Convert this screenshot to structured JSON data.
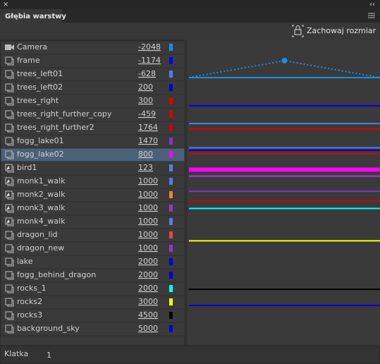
{
  "header": {
    "close": "×",
    "collapse": "‹‹",
    "tab": "Głębia warstwy",
    "button": "Zachowaj rozmiar"
  },
  "layers": [
    {
      "name": "Camera",
      "depth": -2048,
      "color": "#1b8fe5",
      "icon": "camera"
    },
    {
      "name": "frame",
      "depth": -1174,
      "color": "#0000ee",
      "icon": "layer"
    },
    {
      "name": "trees_left01",
      "depth": -628,
      "color": "#4f7fe8",
      "icon": "layer"
    },
    {
      "name": "trees_left02",
      "depth": 200,
      "color": "#0000dd",
      "icon": "layer"
    },
    {
      "name": "trees_right",
      "depth": 300,
      "color": "#dd0000",
      "icon": "layer"
    },
    {
      "name": "trees_right_further_copy",
      "depth": -459,
      "color": "#dd0000",
      "icon": "layer"
    },
    {
      "name": "trees_right_further2",
      "depth": 1764,
      "color": "#cc0000",
      "icon": "layer"
    },
    {
      "name": "fogg_lake01",
      "depth": 1470,
      "color": "#8833cc",
      "icon": "layer"
    },
    {
      "name": "fogg_lake02",
      "depth": 800,
      "color": "#ff00ff",
      "icon": "layer"
    },
    {
      "name": "bird1",
      "depth": 123,
      "color": "#5b7fe0",
      "icon": "symbol"
    },
    {
      "name": "monk1_walk",
      "depth": 1000,
      "color": "#4f7fe8",
      "icon": "symbol"
    },
    {
      "name": "monk2_walk",
      "depth": 1000,
      "color": "#ee8822",
      "icon": "symbol"
    },
    {
      "name": "monk3_walk",
      "depth": 1000,
      "color": "#9933cc",
      "icon": "symbol"
    },
    {
      "name": "monk4_walk",
      "depth": 1000,
      "color": "#4f7fe8",
      "icon": "symbol"
    },
    {
      "name": "dragon_lid",
      "depth": 1000,
      "color": "#ee4444",
      "icon": "layer"
    },
    {
      "name": "dragon_new",
      "depth": 1000,
      "color": "#9933cc",
      "icon": "layer"
    },
    {
      "name": "lake",
      "depth": 2000,
      "color": "#0000dd",
      "icon": "layer"
    },
    {
      "name": "fogg_behind_dragon",
      "depth": 2000,
      "color": "#0000dd",
      "icon": "layer"
    },
    {
      "name": "rocks_1",
      "depth": 2000,
      "color": "#00ffff",
      "icon": "layer"
    },
    {
      "name": "rocks2",
      "depth": 3000,
      "color": "#ffff00",
      "icon": "layer"
    },
    {
      "name": "rocks3",
      "depth": 4500,
      "color": "#000000",
      "icon": "layer"
    },
    {
      "name": "background_sky",
      "depth": 5000,
      "color": "#0000dd",
      "icon": "layer"
    }
  ],
  "selected_index": 8,
  "footer": {
    "label": "Klatka",
    "frame": "1"
  }
}
